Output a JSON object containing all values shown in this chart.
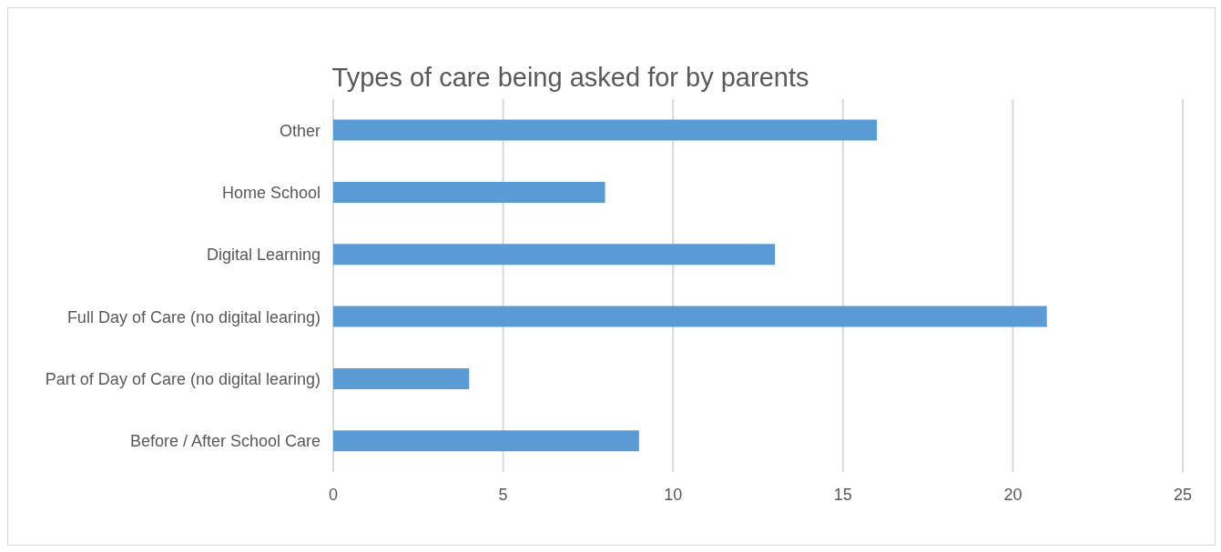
{
  "chart_data": {
    "type": "bar",
    "orientation": "horizontal",
    "title": "Types of care being asked for by parents",
    "categories": [
      "Other",
      "Home School",
      "Digital Learning",
      "Full Day of Care (no digital learing)",
      "Part of Day of Care (no digital learing)",
      "Before / After School Care"
    ],
    "values": [
      16,
      8,
      13,
      21,
      4,
      9
    ],
    "color": "#5b9bd5",
    "xlim": [
      0,
      25
    ],
    "xticks": [
      0,
      5,
      10,
      15,
      20,
      25
    ],
    "grid": "x"
  }
}
